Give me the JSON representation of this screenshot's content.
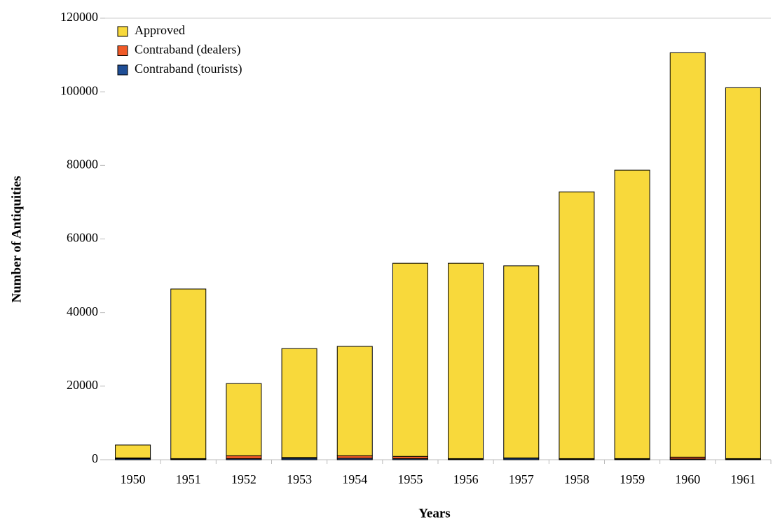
{
  "chart_data": {
    "type": "stacked_bar",
    "x_label": "Years",
    "y_label": "Number of Antiquities",
    "categories": [
      "1950",
      "1951",
      "1952",
      "1953",
      "1954",
      "1955",
      "1956",
      "1957",
      "1958",
      "1959",
      "1960",
      "1961"
    ],
    "series": [
      {
        "name": "Approved",
        "color": "#f8d93b",
        "values": [
          3500,
          46100,
          19600,
          29600,
          29700,
          52500,
          53100,
          52200,
          72500,
          78400,
          109900,
          100800
        ]
      },
      {
        "name": "Contraband (dealers)",
        "color": "#f05a28",
        "values": [
          200,
          100,
          800,
          200,
          700,
          600,
          100,
          100,
          100,
          100,
          500,
          100
        ]
      },
      {
        "name": "Contraband (tourists)",
        "color": "#1f4e96",
        "values": [
          300,
          200,
          300,
          400,
          400,
          300,
          200,
          400,
          200,
          200,
          200,
          200
        ]
      }
    ],
    "ylim": [
      0,
      120000
    ],
    "yticks": [
      0,
      20000,
      40000,
      60000,
      80000,
      100000,
      120000
    ],
    "legend": "top-left"
  }
}
